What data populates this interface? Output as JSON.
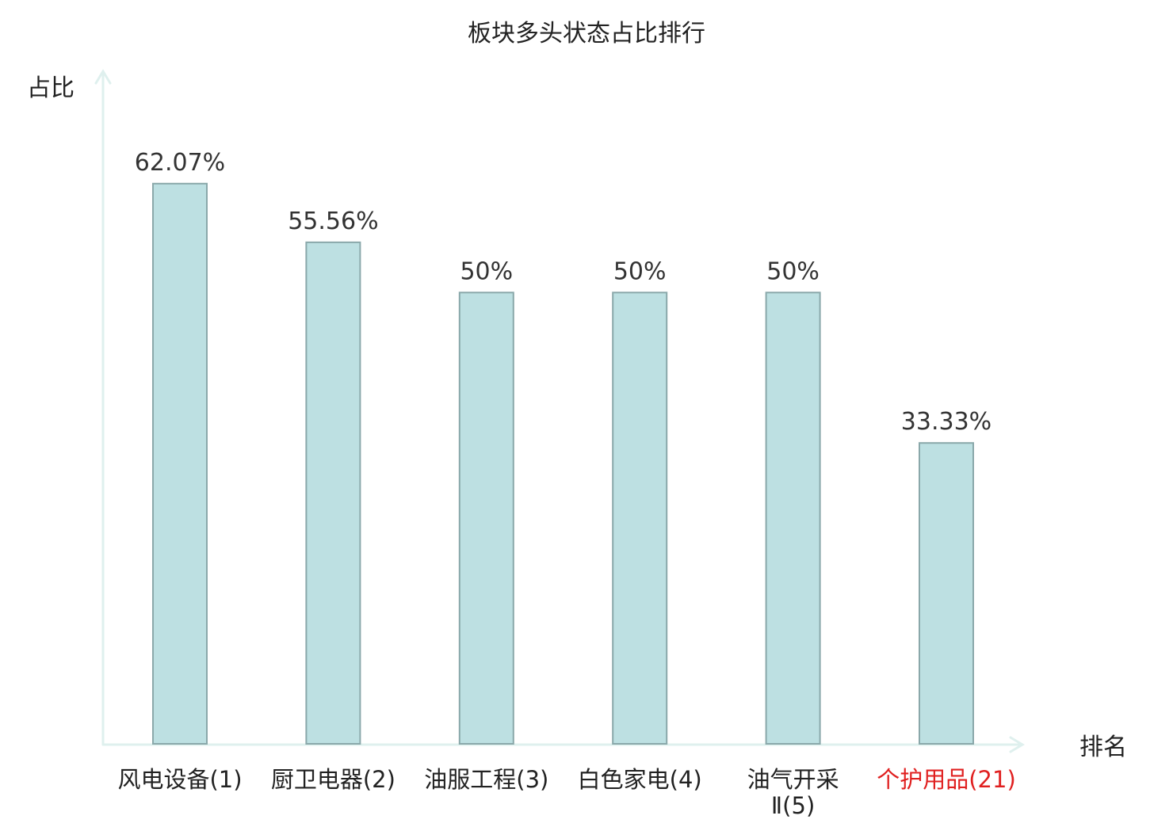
{
  "chart_data": {
    "type": "bar",
    "title": "板块多头状态占比排行",
    "ylabel": "占比",
    "xlabel": "排名",
    "categories": [
      "风电设备(1)",
      "厨卫电器(2)",
      "油服工程(3)",
      "白色家电(4)",
      "油气开采Ⅱ(5)",
      "个护用品(21)"
    ],
    "category_lines": [
      [
        "风电设备(1)"
      ],
      [
        "厨卫电器(2)"
      ],
      [
        "油服工程(3)"
      ],
      [
        "白色家电(4)"
      ],
      [
        "油气开采",
        "Ⅱ(5)"
      ],
      [
        "个护用品(21)"
      ]
    ],
    "values": [
      62.07,
      55.56,
      50,
      50,
      50,
      33.33
    ],
    "value_labels": [
      "62.07%",
      "55.56%",
      "50%",
      "50%",
      "50%",
      "33.33%"
    ],
    "highlight_index": 5,
    "ylim": [
      0,
      71
    ],
    "grid": false,
    "legend": "none",
    "colors": {
      "bar_fill": "#bde0e2",
      "bar_stroke": "#8aa8aa",
      "axis": "#dff0ee",
      "text": "#333333",
      "highlight": "#e02020"
    }
  }
}
